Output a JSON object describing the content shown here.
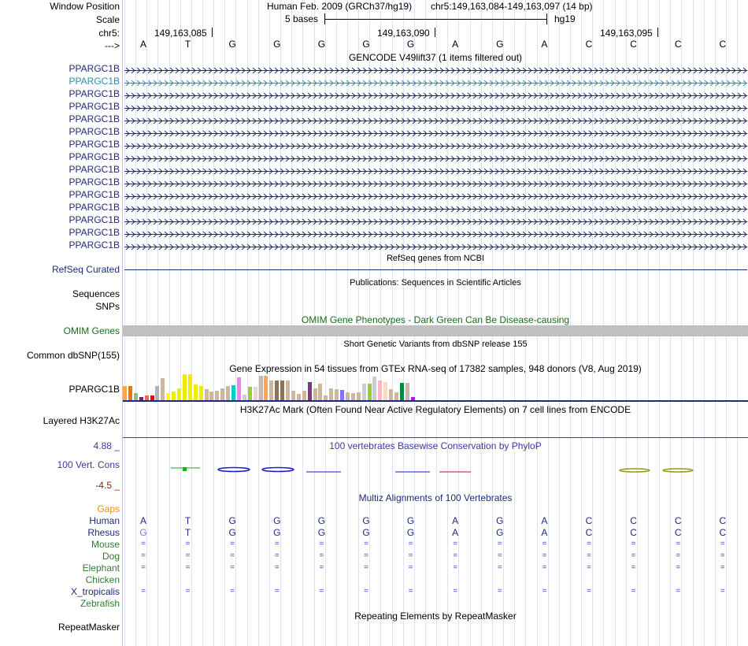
{
  "header": {
    "window_position_label": "Window Position",
    "assembly": "Human Feb. 2009 (GRCh37/hg19)",
    "position_range": "chr5:149,163,084-149,163,097 (14 bp)",
    "scale_label": "Scale",
    "scale_bar": "5 bases",
    "scale_db": "hg19",
    "chrom_label": "chr5:",
    "coords": [
      "149,163,085",
      "149,163,090",
      "149,163,095"
    ],
    "strand_label": "--->"
  },
  "sequence": [
    "A",
    "T",
    "G",
    "G",
    "G",
    "G",
    "G",
    "A",
    "G",
    "A",
    "C",
    "C",
    "C",
    "C"
  ],
  "gencode": {
    "title": "GENCODE V49lift37 (1 items filtered out)",
    "genes": [
      "PPARGC1B",
      "PPARGC1B",
      "PPARGC1B",
      "PPARGC1B",
      "PPARGC1B",
      "PPARGC1B",
      "PPARGC1B",
      "PPARGC1B",
      "PPARGC1B",
      "PPARGC1B",
      "PPARGC1B",
      "PPARGC1B",
      "PPARGC1B",
      "PPARGC1B",
      "PPARGC1B"
    ],
    "colors": [
      "#1f2a7a",
      "#2a8eb0",
      "#1f2a7a",
      "#1f2a7a",
      "#1f2a7a",
      "#1f2a7a",
      "#1f2a7a",
      "#1f2a7a",
      "#1f2a7a",
      "#1f2a7a",
      "#1f2a7a",
      "#1f2a7a",
      "#1f2a7a",
      "#1f2a7a",
      "#1f2a7a"
    ]
  },
  "refseq": {
    "title": "RefSeq genes from NCBI",
    "label": "RefSeq Curated"
  },
  "publications": {
    "title": "Publications: Sequences in Scientific Articles",
    "labels": [
      "Sequences",
      "SNPs"
    ]
  },
  "omim": {
    "title": "OMIM Gene Phenotypes - Dark Green Can Be Disease-causing",
    "label": "OMIM Genes"
  },
  "dbsnp": {
    "title": "Short Genetic Variants from dbSNP release 155",
    "label": "Common dbSNP(155)"
  },
  "gtex": {
    "title": "Gene Expression in 54 tissues from GTEx RNA-seq of 17382 samples, 948 donors (V8, Aug 2019)",
    "label": "PPARGC1B",
    "values": [
      17,
      17,
      9,
      4,
      6,
      6,
      17,
      27,
      9,
      11,
      15,
      32,
      32,
      19,
      17,
      14,
      11,
      12,
      15,
      17,
      18,
      28,
      7,
      16,
      16,
      30,
      30,
      24,
      24,
      24,
      24,
      12,
      8,
      12,
      22,
      15,
      20,
      6,
      15,
      14,
      13,
      10,
      9,
      10,
      20,
      20,
      29,
      24,
      22,
      14,
      10,
      21,
      21,
      4
    ],
    "colors": [
      "#ffa54f",
      "#ee7600",
      "#8fbc8f",
      "#8b1c62",
      "#ee6a50",
      "#ff0000",
      "#b4b4b4",
      "#cdb79e",
      "#ffff00",
      "#eeee00",
      "#eeee00",
      "#eeee00",
      "#eeee00",
      "#eeee00",
      "#eeee00",
      "#cdb79e",
      "#cdb79e",
      "#cdb79e",
      "#cdb79e",
      "#cdb79e",
      "#00cdcd",
      "#ee82ee",
      "#cdcdcd",
      "#9acd32",
      "#eed5d2",
      "#cdb79e",
      "#ffa54f",
      "#cdb79e",
      "#8b7355",
      "#8b7355",
      "#cdb79e",
      "#cdb79e",
      "#cdb79e",
      "#cdb79e",
      "#7a378b",
      "#cdb79e",
      "#cdb79e",
      "#cdb79e",
      "#cdb79e",
      "#cdb79e",
      "#8470ff",
      "#cdb79e",
      "#cdb79e",
      "#cdb79e",
      "#cdcdcd",
      "#9acd32",
      "#cdcdcd",
      "#ffb6c1",
      "#ffdab9",
      "#cdb79e",
      "#cdb79e",
      "#008b45",
      "#cdb79e",
      "#a020f0"
    ]
  },
  "h3k27ac": {
    "title": "H3K27Ac Mark (Often Found Near Active Regulatory Elements) on 7 cell lines from ENCODE",
    "label": "Layered H3K27Ac"
  },
  "phylop": {
    "title": "100 vertebrates Basewise Conservation by PhyloP",
    "label": "100 Vert. Cons",
    "max": "4.88 _",
    "min": "-4.5 _"
  },
  "multiz": {
    "title": "Multiz Alignments of 100 Vertebrates",
    "gaps_label": "Gaps",
    "species": [
      {
        "name": "Human",
        "color": "#1f2a7a",
        "seq": [
          "A",
          "T",
          "G",
          "G",
          "G",
          "G",
          "G",
          "A",
          "G",
          "A",
          "C",
          "C",
          "C",
          "C"
        ]
      },
      {
        "name": "Rhesus",
        "color": "#1f2a7a",
        "seq": [
          "G",
          "T",
          "G",
          "G",
          "G",
          "G",
          "G",
          "A",
          "G",
          "A",
          "C",
          "C",
          "C",
          "C"
        ]
      },
      {
        "name": "Mouse",
        "color": "#2e7d32",
        "seq": [
          "=",
          "=",
          "=",
          "=",
          "=",
          "=",
          "=",
          "=",
          "=",
          "=",
          "=",
          "=",
          "=",
          "="
        ]
      },
      {
        "name": "Dog",
        "color": "#2e7d32",
        "seq": [
          "=",
          "=",
          "=",
          "=",
          "=",
          "=",
          "=",
          "=",
          "=",
          "=",
          "=",
          "=",
          "=",
          "="
        ]
      },
      {
        "name": "Elephant",
        "color": "#2e7d32",
        "seq": [
          "=",
          "=",
          "=",
          "=",
          "=",
          "=",
          "=",
          "=",
          "=",
          "=",
          "=",
          "=",
          "=",
          "="
        ]
      },
      {
        "name": "Chicken",
        "color": "#2e7d32",
        "seq": []
      },
      {
        "name": "X_tropicalis",
        "color": "#1f2a7a",
        "seq": [
          "=",
          "=",
          "=",
          "=",
          "=",
          "=",
          "=",
          "=",
          "=",
          "=",
          "=",
          "=",
          "=",
          "="
        ]
      },
      {
        "name": "Zebrafish",
        "color": "#2e7d32",
        "seq": []
      }
    ]
  },
  "repeatmasker": {
    "title": "Repeating Elements by RepeatMasker",
    "label": "RepeatMasker"
  }
}
